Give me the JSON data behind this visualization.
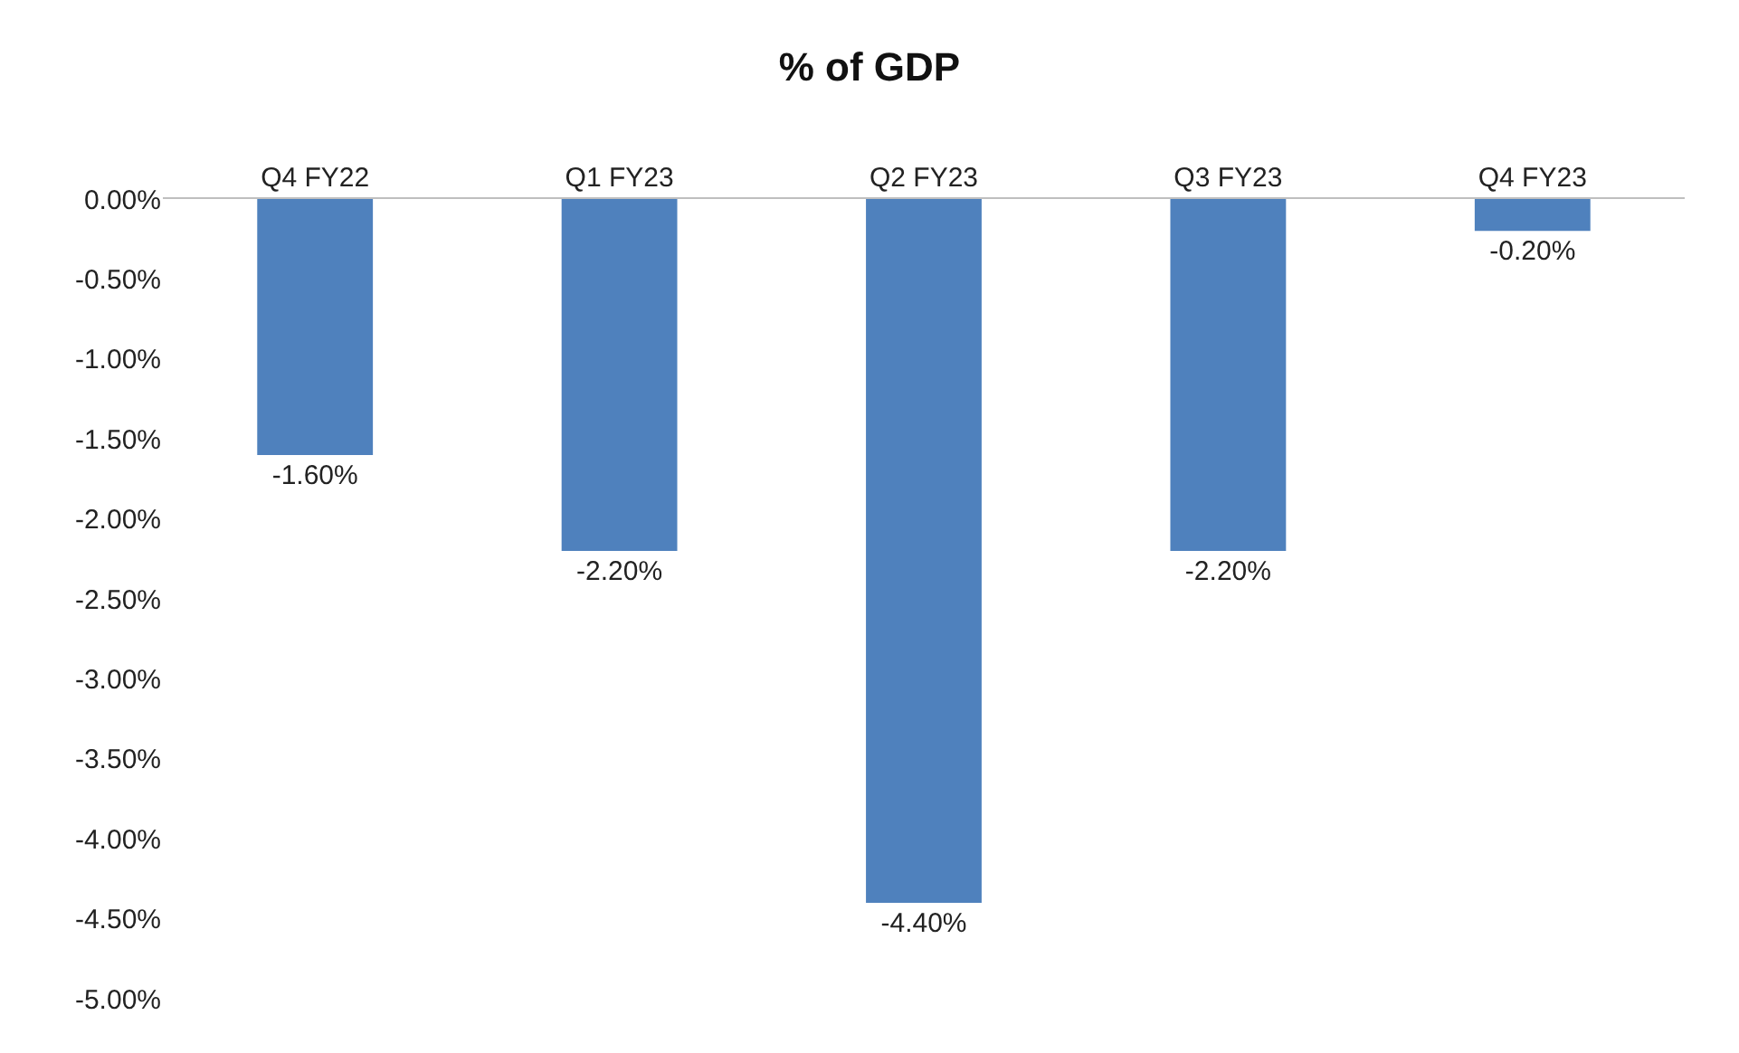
{
  "chart_data": {
    "type": "bar",
    "title": "% of GDP",
    "categories": [
      "Q4 FY22",
      "Q1 FY23",
      "Q2 FY23",
      "Q3 FY23",
      "Q4 FY23"
    ],
    "values": [
      -1.6,
      -2.2,
      -4.4,
      -2.2,
      -0.2
    ],
    "value_labels": [
      "-1.60%",
      "-2.20%",
      "-4.40%",
      "-2.20%",
      "-0.20%"
    ],
    "color": "#4f81bd",
    "ylim": [
      -5,
      0
    ],
    "yticks": [
      {
        "value": 0,
        "label": "0.00%"
      },
      {
        "value": -0.5,
        "label": "-0.50%"
      },
      {
        "value": -1,
        "label": "-1.00%"
      },
      {
        "value": -1.5,
        "label": "-1.50%"
      },
      {
        "value": -2,
        "label": "-2.00%"
      },
      {
        "value": -2.5,
        "label": "-2.50%"
      },
      {
        "value": -3,
        "label": "-3.00%"
      },
      {
        "value": -3.5,
        "label": "-3.50%"
      },
      {
        "value": -4,
        "label": "-4.00%"
      },
      {
        "value": -4.5,
        "label": "-4.50%"
      },
      {
        "value": -5,
        "label": "-5.00%"
      }
    ],
    "stacked": false
  }
}
